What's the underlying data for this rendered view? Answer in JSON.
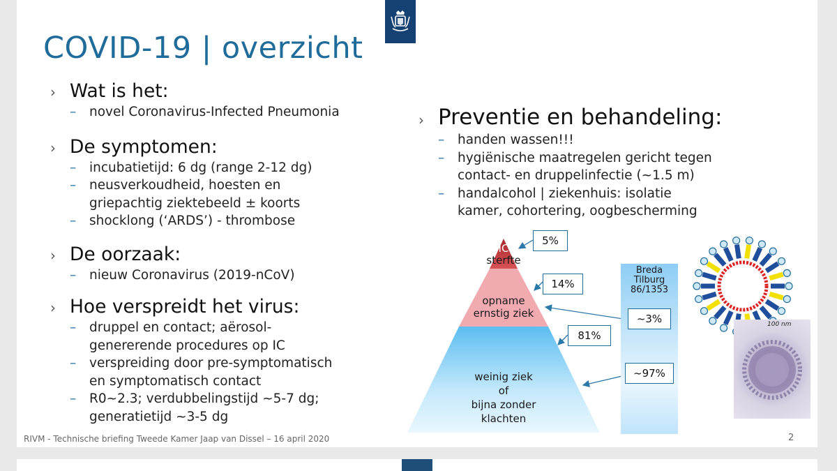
{
  "title": "COVID-19 | overzicht",
  "left_sections": [
    {
      "heading": "Wat is het:",
      "items": [
        "novel Coronavirus-Infected Pneumonia"
      ]
    },
    {
      "heading": "De symptomen:",
      "items": [
        "incubatietijd: 6 dg (range 2-12 dg)",
        "neusverkoudheid, hoesten en",
        "griepachtig ziektebeeld ± koorts",
        "shocklong (‘ARDS’) - thrombose"
      ]
    },
    {
      "heading": "De oorzaak:",
      "items": [
        "nieuw Coronavirus (2019-nCoV)"
      ]
    },
    {
      "heading": "Hoe verspreidt het virus:",
      "items": [
        "druppel en contact; aërosol-",
        "genererende procedures op IC",
        "verspreiding door pre-symptomatisch",
        "en symptomatisch contact",
        "R0~2.3; verdubbelingstijd ~5-7 dg;",
        "generatietijd ~3-5 dg"
      ]
    }
  ],
  "right_section": {
    "heading": "Preventie en behandeling:",
    "items": [
      "handen wassen!!!",
      "hygiënische maatregelen gericht tegen",
      "contact- en druppelinfectie (~1.5 m)",
      "handalcohol | ziekenhuis: isolatie",
      "kamer, cohortering, oogbescherming"
    ]
  },
  "pyramid": {
    "top_label_1": "IC",
    "top_label_2": "sterfte",
    "mid_label_1": "opname",
    "mid_label_2": "ernstig ziek",
    "bottom_label_1": "weinig ziek",
    "bottom_label_2": "of",
    "bottom_label_3": "bijna zonder",
    "bottom_label_4": "klachten",
    "pct_top": "5%",
    "pct_mid": "14%",
    "pct_bottom": "81%",
    "colors": {
      "top": "#c0393b",
      "mid": "#f0aeb3",
      "bottom": "#a9dcf6"
    }
  },
  "breda": {
    "line1": "Breda",
    "line2": "Tilburg",
    "line3": "86/1353",
    "pct_mid": "~3%",
    "pct_bottom": "~97%"
  },
  "micrograph_scale": "100 nm",
  "footer": "RIVM - Technische briefing Tweede Kamer Jaap van Dissel – 16 april 2020",
  "page_number": "2"
}
